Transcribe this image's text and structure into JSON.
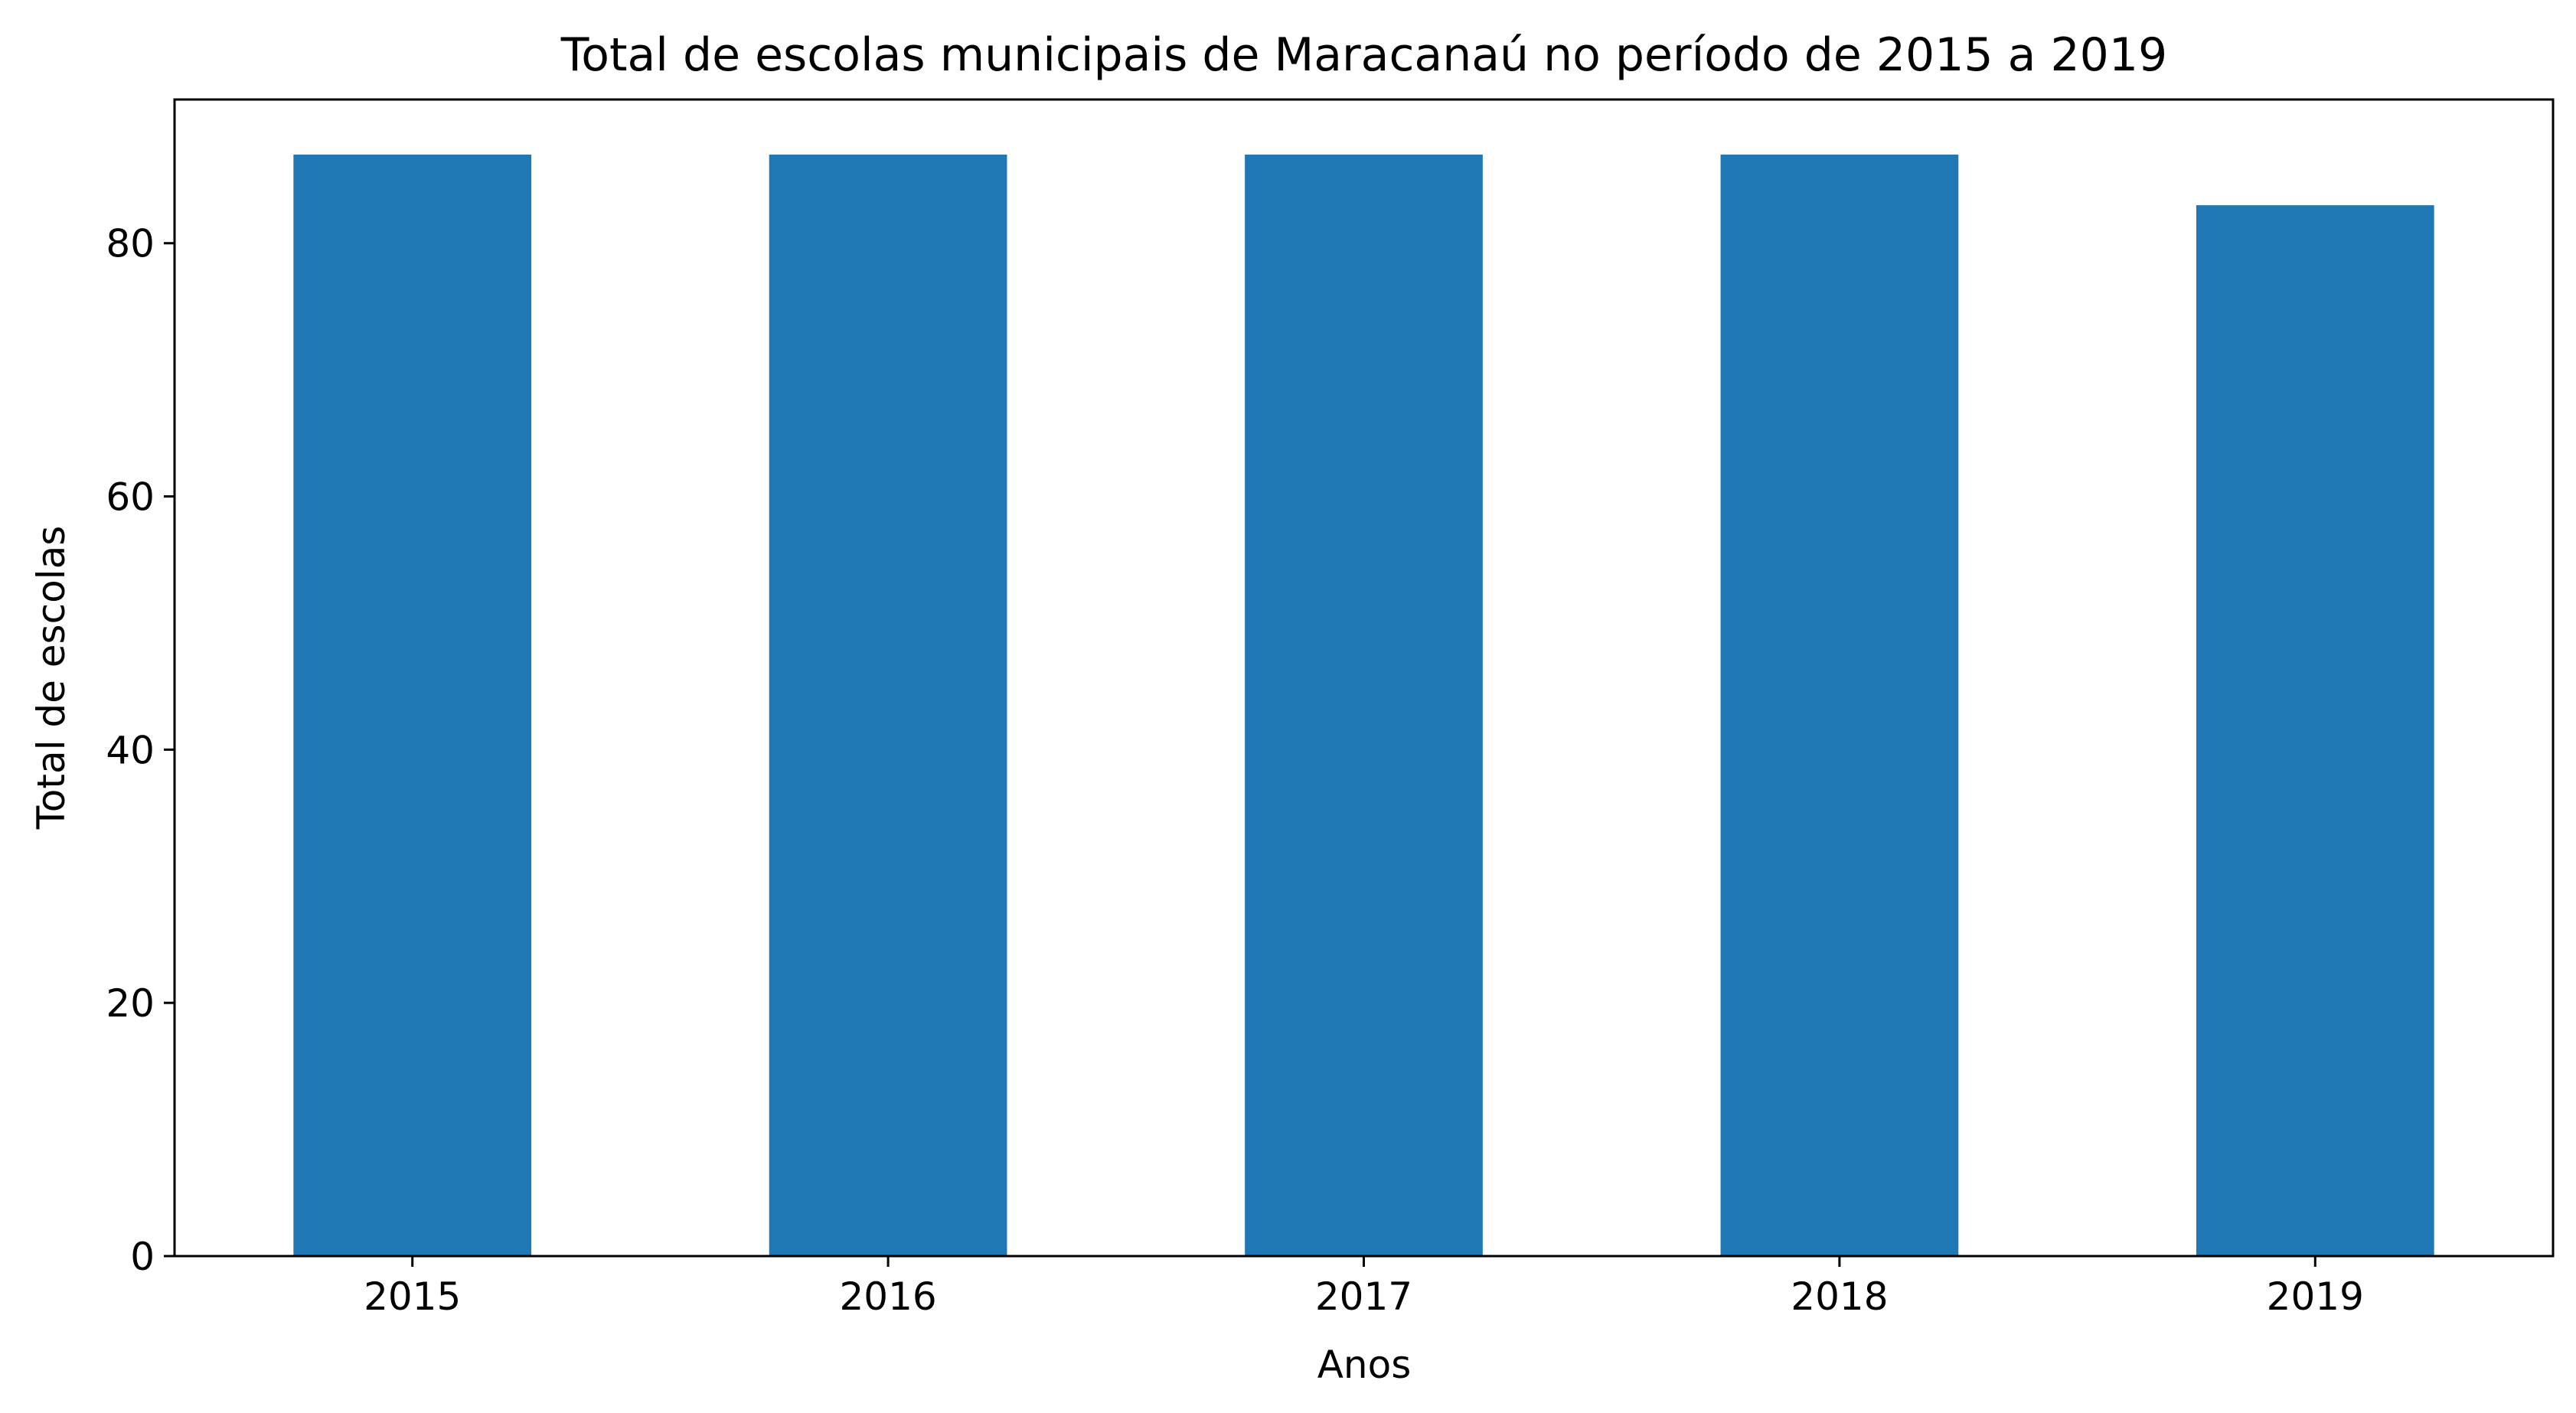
{
  "chart_data": {
    "type": "bar",
    "title": "Total de escolas municipais de Maracanaú no período de 2015 a 2019",
    "xlabel": "Anos",
    "ylabel": "Total de escolas",
    "categories": [
      "2015",
      "2016",
      "2017",
      "2018",
      "2019"
    ],
    "values": [
      87,
      87,
      87,
      87,
      83
    ],
    "ylim": [
      0,
      91.35
    ],
    "yticks": [
      0,
      20,
      40,
      60,
      80
    ],
    "grid": false,
    "legend": "none",
    "bar_color": "#1f77b4"
  }
}
